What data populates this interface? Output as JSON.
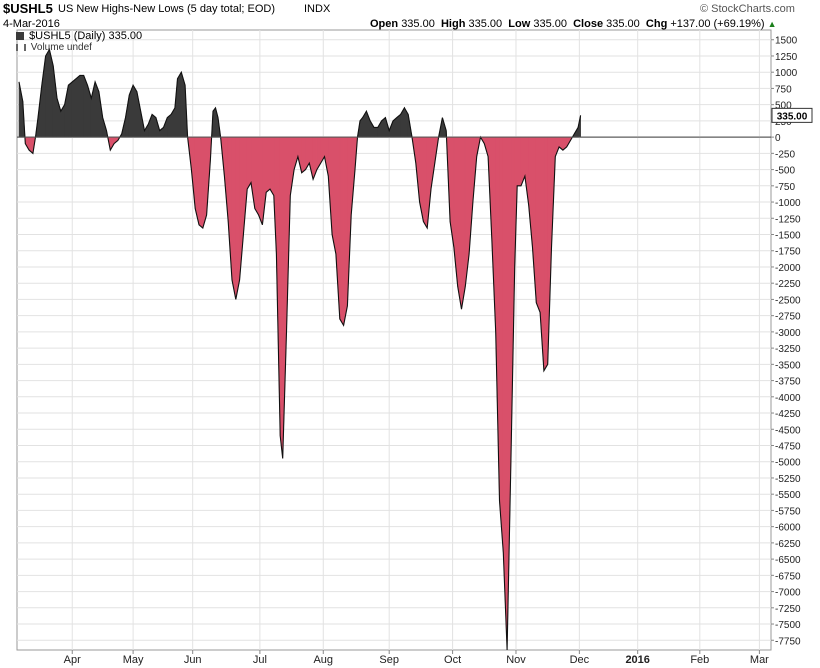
{
  "header": {
    "symbol": "$USHL5",
    "description": "US New Highs-New Lows (5 day total; EOD)",
    "exchange": "INDX",
    "date": "4-Mar-2016",
    "open_label": "Open",
    "open_value": "335.00",
    "high_label": "High",
    "high_value": "335.00",
    "low_label": "Low",
    "low_value": "335.00",
    "close_label": "Close",
    "close_value": "335.00",
    "chg_label": "Chg",
    "chg_value": "+137.00 (+69.19%)",
    "chg_icon": "up-arrow-icon",
    "watermark": "© StockCharts.com"
  },
  "legend": {
    "series_label": "$USHL5 (Daily) 335.00",
    "volume_label": "Volume undef"
  },
  "chart_data": {
    "type": "area",
    "title": "$USHL5 US New Highs-New Lows (5 day total; EOD)",
    "series": [
      {
        "name": "$USHL5 (Daily)",
        "last_value": 335.0
      }
    ],
    "y_ticks": [
      1500,
      1250,
      1000,
      750,
      500,
      250,
      0,
      -250,
      -500,
      -750,
      -1000,
      -1250,
      -1500,
      -1750,
      -2000,
      -2250,
      -2500,
      -2750,
      -3000,
      -3250,
      -3500,
      -3750,
      -4000,
      -4250,
      -4500,
      -4750,
      -5000,
      -5250,
      -5500,
      -5750,
      -6000,
      -6250,
      -6500,
      -6750,
      -7000,
      -7250,
      -7500,
      -7750
    ],
    "ylim": [
      -7900,
      1650
    ],
    "x_ticks": [
      {
        "label": "Apr",
        "t": 42,
        "bold": false
      },
      {
        "label": "May",
        "t": 90,
        "bold": false
      },
      {
        "label": "Jun",
        "t": 137,
        "bold": false
      },
      {
        "label": "Jul",
        "t": 190,
        "bold": false
      },
      {
        "label": "Aug",
        "t": 240,
        "bold": false
      },
      {
        "label": "Sep",
        "t": 292,
        "bold": false
      },
      {
        "label": "Oct",
        "t": 342,
        "bold": false
      },
      {
        "label": "Nov",
        "t": 392,
        "bold": false
      },
      {
        "label": "Dec",
        "t": 442,
        "bold": false
      },
      {
        "label": "2016",
        "t": 488,
        "bold": true
      },
      {
        "label": "Feb",
        "t": 537,
        "bold": false
      },
      {
        "label": "Mar",
        "t": 584,
        "bold": false
      }
    ],
    "xlim": [
      0,
      590
    ],
    "positive_color": "#3a3a3a",
    "negative_color": "#d9506a",
    "last_value_label": "335.00",
    "points": [
      [
        0,
        850
      ],
      [
        3,
        550
      ],
      [
        5,
        -100
      ],
      [
        8,
        -200
      ],
      [
        11,
        -250
      ],
      [
        13,
        0
      ],
      [
        15,
        300
      ],
      [
        18,
        800
      ],
      [
        21,
        1250
      ],
      [
        24,
        1350
      ],
      [
        27,
        1100
      ],
      [
        30,
        600
      ],
      [
        33,
        400
      ],
      [
        36,
        500
      ],
      [
        39,
        800
      ],
      [
        42,
        850
      ],
      [
        45,
        900
      ],
      [
        48,
        950
      ],
      [
        51,
        950
      ],
      [
        54,
        800
      ],
      [
        57,
        600
      ],
      [
        60,
        850
      ],
      [
        63,
        700
      ],
      [
        66,
        300
      ],
      [
        69,
        100
      ],
      [
        72,
        -200
      ],
      [
        75,
        -100
      ],
      [
        78,
        -50
      ],
      [
        81,
        50
      ],
      [
        84,
        300
      ],
      [
        87,
        650
      ],
      [
        90,
        800
      ],
      [
        93,
        700
      ],
      [
        96,
        400
      ],
      [
        99,
        100
      ],
      [
        102,
        200
      ],
      [
        105,
        350
      ],
      [
        108,
        300
      ],
      [
        111,
        100
      ],
      [
        114,
        150
      ],
      [
        117,
        300
      ],
      [
        120,
        350
      ],
      [
        123,
        450
      ],
      [
        125,
        900
      ],
      [
        128,
        1000
      ],
      [
        131,
        800
      ],
      [
        133,
        0
      ],
      [
        136,
        -500
      ],
      [
        139,
        -1100
      ],
      [
        142,
        -1350
      ],
      [
        145,
        -1400
      ],
      [
        148,
        -1200
      ],
      [
        151,
        -350
      ],
      [
        153,
        400
      ],
      [
        155,
        450
      ],
      [
        157,
        300
      ],
      [
        159,
        0
      ],
      [
        162,
        -600
      ],
      [
        165,
        -1300
      ],
      [
        168,
        -2200
      ],
      [
        171,
        -2500
      ],
      [
        174,
        -2200
      ],
      [
        177,
        -1500
      ],
      [
        180,
        -800
      ],
      [
        183,
        -700
      ],
      [
        186,
        -1100
      ],
      [
        189,
        -1200
      ],
      [
        192,
        -1350
      ],
      [
        195,
        -850
      ],
      [
        198,
        -800
      ],
      [
        201,
        -900
      ],
      [
        203,
        -1800
      ],
      [
        206,
        -4600
      ],
      [
        208,
        -4950
      ],
      [
        211,
        -3000
      ],
      [
        214,
        -900
      ],
      [
        217,
        -500
      ],
      [
        220,
        -300
      ],
      [
        223,
        -550
      ],
      [
        226,
        -500
      ],
      [
        229,
        -400
      ],
      [
        232,
        -650
      ],
      [
        235,
        -500
      ],
      [
        238,
        -400
      ],
      [
        241,
        -300
      ],
      [
        244,
        -600
      ],
      [
        247,
        -1500
      ],
      [
        250,
        -1800
      ],
      [
        253,
        -2800
      ],
      [
        256,
        -2900
      ],
      [
        259,
        -2600
      ],
      [
        262,
        -1200
      ],
      [
        265,
        -500
      ],
      [
        267,
        0
      ],
      [
        269,
        250
      ],
      [
        271,
        300
      ],
      [
        274,
        400
      ],
      [
        277,
        250
      ],
      [
        280,
        150
      ],
      [
        283,
        150
      ],
      [
        286,
        250
      ],
      [
        289,
        300
      ],
      [
        292,
        100
      ],
      [
        295,
        250
      ],
      [
        298,
        300
      ],
      [
        301,
        350
      ],
      [
        304,
        450
      ],
      [
        307,
        350
      ],
      [
        310,
        0
      ],
      [
        313,
        -400
      ],
      [
        316,
        -1000
      ],
      [
        319,
        -1300
      ],
      [
        322,
        -1400
      ],
      [
        325,
        -800
      ],
      [
        328,
        -400
      ],
      [
        331,
        0
      ],
      [
        334,
        300
      ],
      [
        337,
        100
      ],
      [
        340,
        -1300
      ],
      [
        343,
        -1700
      ],
      [
        346,
        -2300
      ],
      [
        349,
        -2650
      ],
      [
        352,
        -2300
      ],
      [
        355,
        -1800
      ],
      [
        358,
        -1000
      ],
      [
        361,
        -300
      ],
      [
        364,
        0
      ],
      [
        367,
        -100
      ],
      [
        370,
        -300
      ],
      [
        373,
        -1600
      ],
      [
        376,
        -3000
      ],
      [
        379,
        -5600
      ],
      [
        382,
        -6400
      ],
      [
        385,
        -7900
      ],
      [
        388,
        -5000
      ],
      [
        391,
        -2000
      ],
      [
        393,
        -750
      ],
      [
        396,
        -750
      ],
      [
        399,
        -600
      ],
      [
        402,
        -1050
      ],
      [
        405,
        -1700
      ],
      [
        408,
        -2550
      ],
      [
        411,
        -2700
      ],
      [
        414,
        -3600
      ],
      [
        417,
        -3500
      ],
      [
        420,
        -1700
      ],
      [
        423,
        -300
      ],
      [
        426,
        -150
      ],
      [
        429,
        -200
      ],
      [
        432,
        -150
      ],
      [
        435,
        -50
      ],
      [
        438,
        50
      ],
      [
        441,
        150
      ],
      [
        443,
        335
      ]
    ]
  }
}
